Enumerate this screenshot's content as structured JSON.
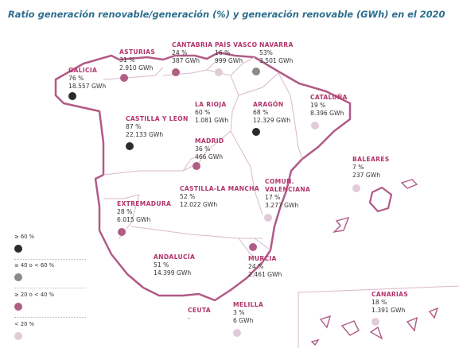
{
  "title": "Ratio generación renovable/generación (%) y generación renovable (GWh) en el 2020",
  "colors": {
    "title": "#2c6e8f",
    "region_name": "#b2346b",
    "outline": "#b15a86",
    "inner_border": "#d9b8c9",
    "text": "#333333"
  },
  "legend": [
    {
      "key": "ge60",
      "label": "≥ 60 %",
      "color": "#2b2b2b"
    },
    {
      "key": "40to60",
      "label": "≥ 40 o < 60 %",
      "color": "#8a8a8a"
    },
    {
      "key": "20to40",
      "label": "≥ 20 o < 40 %",
      "color": "#b05e86"
    },
    {
      "key": "lt20",
      "label": "< 20 %",
      "color": "#e2cbd8"
    }
  ],
  "regions": [
    {
      "id": "galicia",
      "name": "GALICIA",
      "pct": "76 %",
      "gwh": "18.557 GWh",
      "cat": "ge60"
    },
    {
      "id": "asturias",
      "name": "ASTURIAS",
      "pct": "31 %",
      "gwh": "2.910 GWh",
      "cat": "20to40"
    },
    {
      "id": "cantabria",
      "name": "CANTABRIA",
      "pct": "24 %",
      "gwh": "387 GWh",
      "cat": "20to40"
    },
    {
      "id": "pais-vasco",
      "name": "PAÍS VASCO",
      "pct": "16 %",
      "gwh": "999 GWh",
      "cat": "lt20"
    },
    {
      "id": "navarra",
      "name": "NAVARRA",
      "pct": "53%",
      "gwh": "3.501 GWh",
      "cat": "40to60"
    },
    {
      "id": "la-rioja",
      "name": "LA RIOJA",
      "pct": "60 %",
      "gwh": "1.081 GWh",
      "cat": "ge60"
    },
    {
      "id": "aragon",
      "name": "ARAGÓN",
      "pct": "68 %",
      "gwh": "12.329 GWh",
      "cat": "ge60"
    },
    {
      "id": "cataluna",
      "name": "CATALUÑA",
      "pct": "19 %",
      "gwh": "8.396 GWh",
      "cat": "lt20"
    },
    {
      "id": "castilla-leon",
      "name": "CASTILLA Y LEÓN",
      "pct": "87 %",
      "gwh": "22.133 GWh",
      "cat": "ge60"
    },
    {
      "id": "madrid",
      "name": "MADRID",
      "pct": "36 %",
      "gwh": "466 GWh",
      "cat": "20to40"
    },
    {
      "id": "baleares",
      "name": "BALEARES",
      "pct": "7 %",
      "gwh": "237 GWh",
      "cat": "lt20"
    },
    {
      "id": "extremadura",
      "name": "EXTREMADURA",
      "pct": "28 %",
      "gwh": "6.015 GWh",
      "cat": "20to40"
    },
    {
      "id": "castilla-la-mancha",
      "name": "CASTILLA-LA MANCHA",
      "pct": "52 %",
      "gwh": "12.022 GWh",
      "cat": "40to60"
    },
    {
      "id": "comunidad-valenciana",
      "name": "COMUN.",
      "name2": "VALENCIANA",
      "pct": "17 %",
      "gwh": "3.277 GWh",
      "cat": "lt20"
    },
    {
      "id": "andalucia",
      "name": "ANDALUCÍA",
      "pct": "51 %",
      "gwh": "14.399 GWh",
      "cat": "40to60"
    },
    {
      "id": "murcia",
      "name": "MURCIA",
      "pct": "24 %",
      "gwh": "2.461 GWh",
      "cat": "20to40"
    },
    {
      "id": "ceuta",
      "name": "CEUTA",
      "pct": "-",
      "gwh": "",
      "cat": "none"
    },
    {
      "id": "melilla",
      "name": "MELILLA",
      "pct": "3 %",
      "gwh": "6 GWh",
      "cat": "lt20"
    },
    {
      "id": "canarias",
      "name": "CANARIAS",
      "pct": "18 %",
      "gwh": "1.391 GWh",
      "cat": "lt20"
    }
  ]
}
